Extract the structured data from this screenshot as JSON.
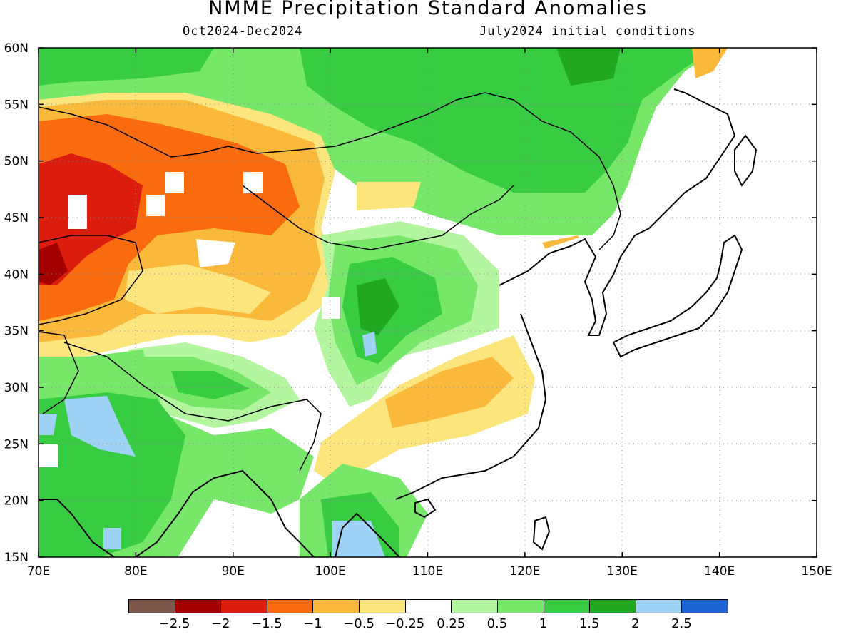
{
  "title": "NMME Precipitation Standard Anomalies",
  "period": "Oct2024-Dec2024",
  "init": "July2024 initial conditions",
  "axes": {
    "lon_labels": [
      "70E",
      "80E",
      "90E",
      "100E",
      "110E",
      "120E",
      "130E",
      "140E",
      "150E"
    ],
    "lat_labels": [
      "60N",
      "55N",
      "50N",
      "45N",
      "40N",
      "35N",
      "30N",
      "25N",
      "20N",
      "15N"
    ]
  },
  "colorbar": {
    "colors": [
      "#7b5649",
      "#a50000",
      "#dc1c0c",
      "#fa6a0f",
      "#fbb93c",
      "#fde57d",
      "#ffffff",
      "#b4f5a0",
      "#76e769",
      "#37cc41",
      "#20a920",
      "#9fd3f6",
      "#1964d2"
    ],
    "labels": [
      "-2.5",
      "-2",
      "-1.5",
      "-1",
      "-0.5",
      "-0.25",
      "0.25",
      "0.5",
      "1",
      "1.5",
      "2",
      "2.5"
    ]
  },
  "map_extent": {
    "lon": [
      70,
      150
    ],
    "lat": [
      15,
      60
    ]
  }
}
